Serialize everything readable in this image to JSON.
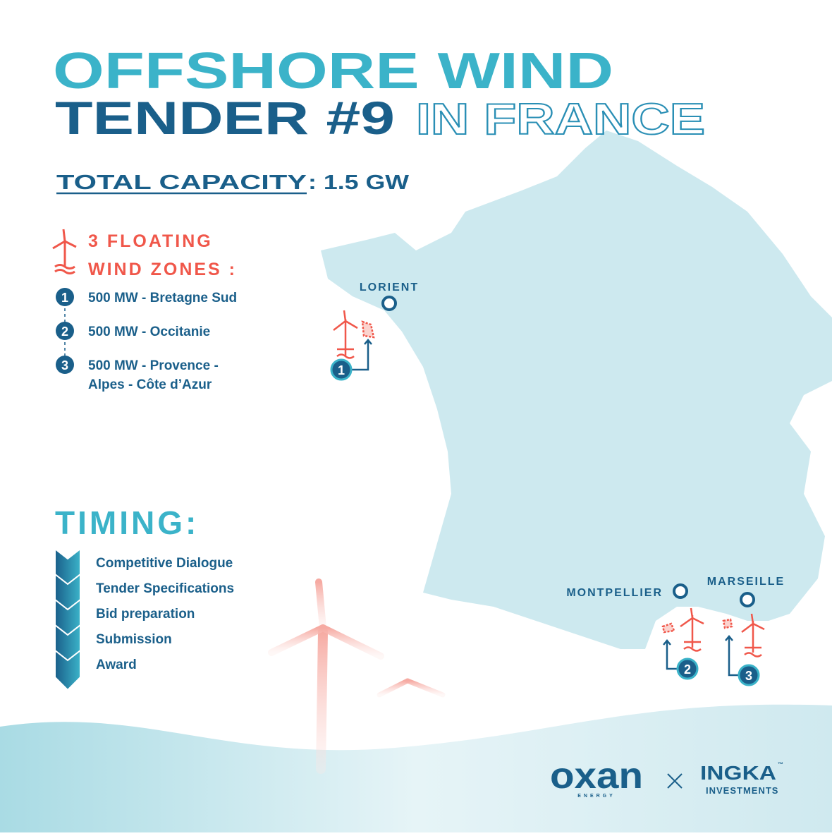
{
  "title": {
    "line1": "OFFSHORE WIND",
    "line2_bold": "TENDER #9",
    "line2_outline": "IN FRANCE"
  },
  "capacity": {
    "label": "TOTAL CAPACITY",
    "value": ": 1.5 GW"
  },
  "zones": {
    "heading": [
      "3 FLOATING",
      "WIND ZONES :"
    ],
    "items": [
      {
        "number": "1",
        "lines": [
          "500 MW - Bretagne Sud"
        ]
      },
      {
        "number": "2",
        "lines": [
          "500 MW - Occitanie"
        ]
      },
      {
        "number": "3",
        "lines": [
          "500 MW - Provence -",
          "Alpes - Côte d’Azur"
        ]
      }
    ]
  },
  "timing": {
    "heading": "TIMING:",
    "steps": [
      "Competitive Dialogue",
      "Tender Specifications",
      "Bid preparation",
      "Submission",
      "Award"
    ]
  },
  "map": {
    "cities": [
      "LORIENT",
      "MONTPELLIER",
      "MARSEILLE"
    ],
    "markers": [
      "1",
      "2",
      "3"
    ]
  },
  "logos": {
    "oxan": "oxan",
    "oxan_sub": "ENERGY",
    "ingka": "INGKA",
    "ingka_tm": "™",
    "ingka_sub": "INVESTMENTS"
  }
}
